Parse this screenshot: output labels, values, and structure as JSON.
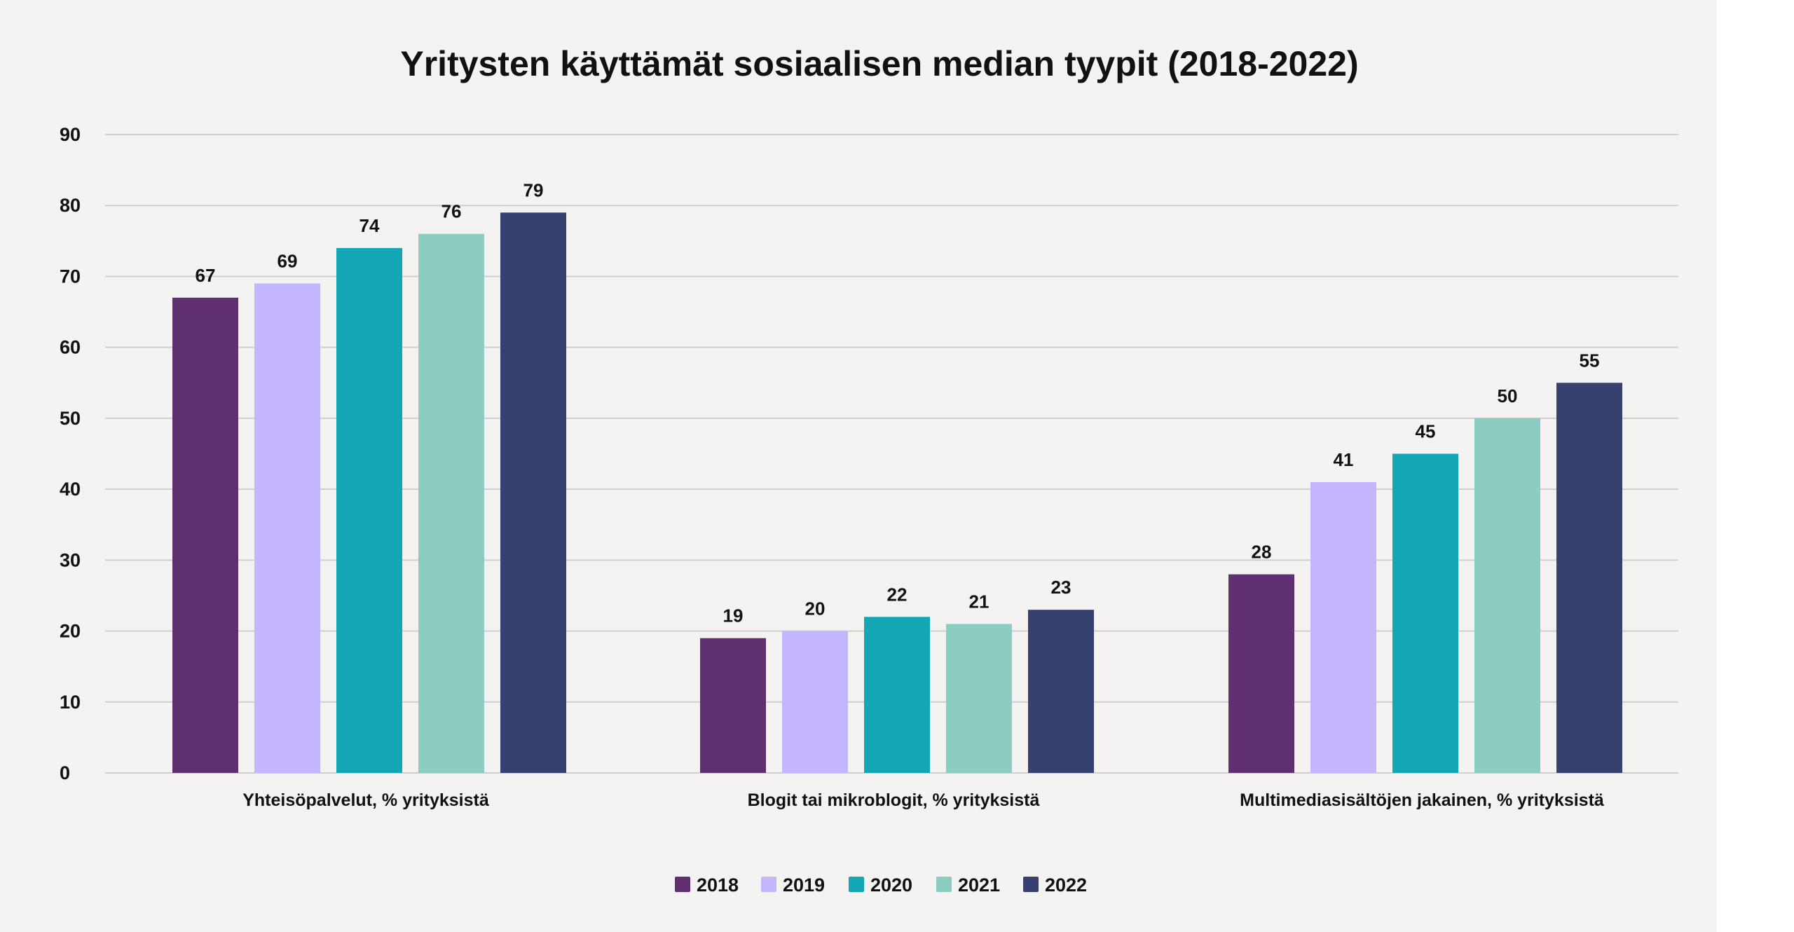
{
  "chart_data": {
    "type": "bar",
    "title": "Yritysten käyttämät sosiaalisen median tyypit (2018-2022)",
    "categories": [
      "Yhteisöpalvelut, % yrityksistä",
      "Blogit tai mikroblogit, % yrityksistä",
      "Multimediasisältöjen jakainen, % yrityksistä"
    ],
    "series": [
      {
        "name": "2018",
        "color": "#5f2f6f",
        "values": [
          67,
          19,
          28
        ]
      },
      {
        "name": "2019",
        "color": "#c5b5ff",
        "values": [
          69,
          20,
          41
        ]
      },
      {
        "name": "2020",
        "color": "#13a6b4",
        "values": [
          74,
          22,
          45
        ]
      },
      {
        "name": "2021",
        "color": "#8bcdc1",
        "values": [
          76,
          21,
          50
        ]
      },
      {
        "name": "2022",
        "color": "#364170",
        "values": [
          79,
          23,
          55
        ]
      }
    ],
    "y_ticks": [
      "0",
      "10",
      "20",
      "30",
      "40",
      "50",
      "60",
      "70",
      "80",
      "90"
    ],
    "ylim": [
      0,
      90
    ],
    "grid": true,
    "legend_position": "bottom-center",
    "xlabel": "",
    "ylabel": ""
  }
}
